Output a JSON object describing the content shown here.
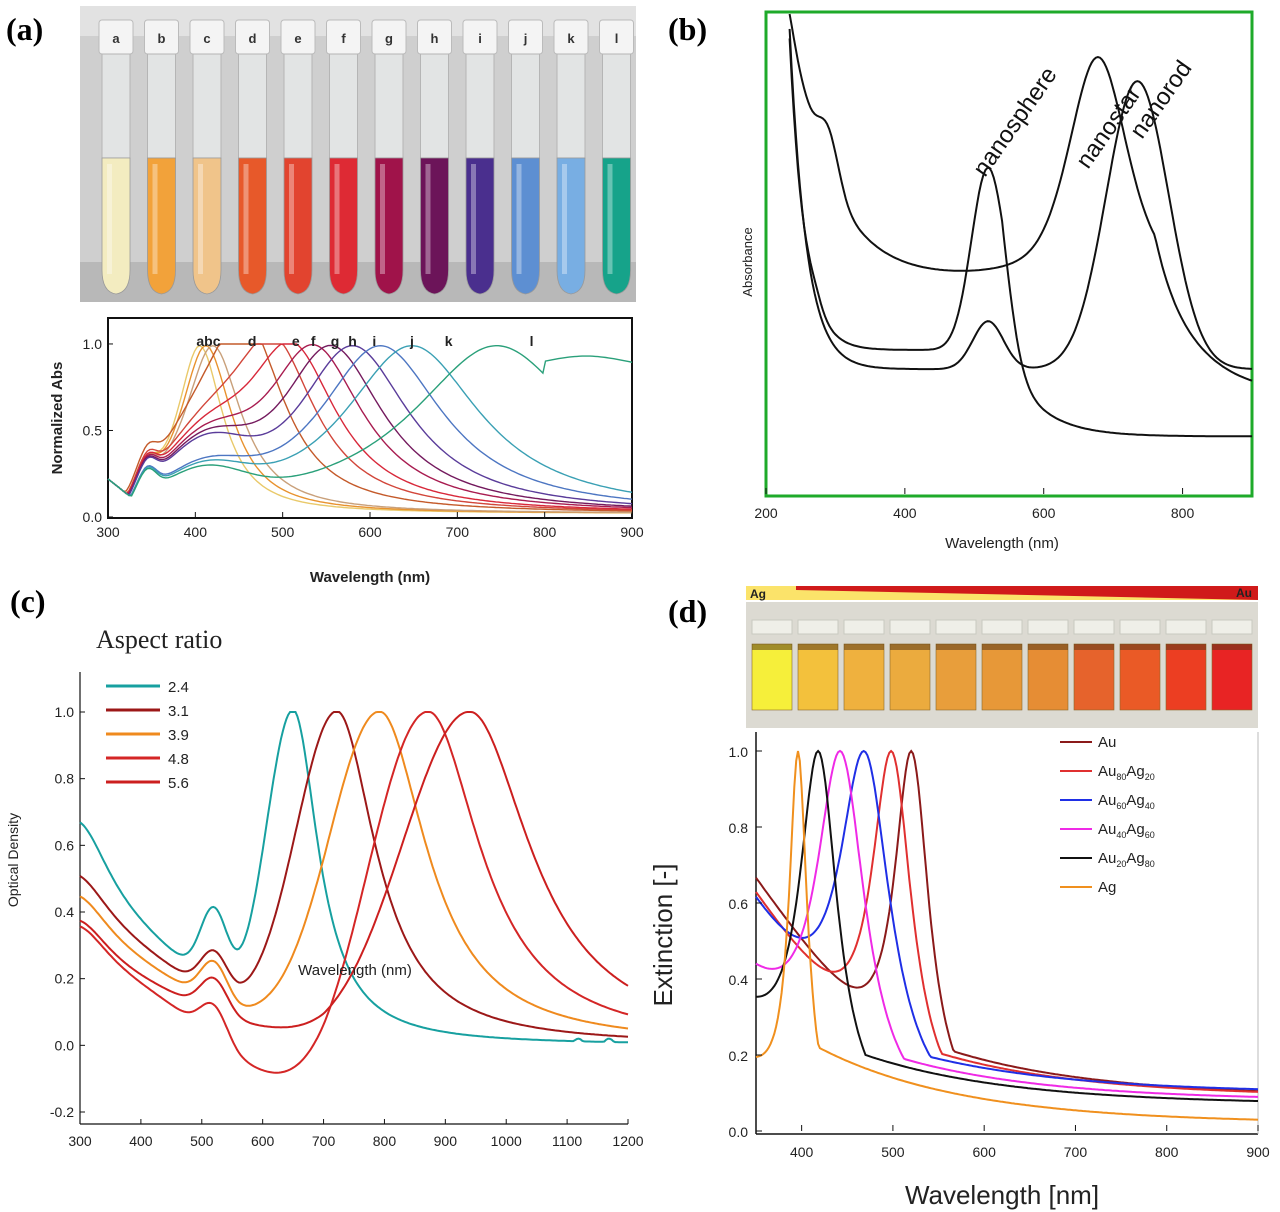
{
  "panel_labels": {
    "a": "(a)",
    "b": "(b)",
    "c": "(c)",
    "d": "(d)"
  },
  "colors": {
    "tubes_a": [
      "#f3ecc0",
      "#f2a23a",
      "#f0c48a",
      "#e7592a",
      "#e2442f",
      "#de2a34",
      "#a0134a",
      "#6c1459",
      "#4a2f8e",
      "#5d8fd2",
      "#78aee3",
      "#16a38a"
    ],
    "curves_a": [
      "#e9c96a",
      "#e8922e",
      "#c9a07a",
      "#c45a2a",
      "#d2463a",
      "#d8283a",
      "#a81c50",
      "#741a5e",
      "#5a3c9a",
      "#4d76c2",
      "#3aa0b4",
      "#2aa07a"
    ],
    "aspect": [
      "#17a0a0",
      "#9c1818",
      "#ef8a1e",
      "#d42626",
      "#cc1f1f"
    ],
    "alloy": [
      "#8b1a1a",
      "#e03030",
      "#1f2fe6",
      "#ef2ae6",
      "#111111",
      "#f0901e"
    ],
    "green_frame": "#1eaa2a"
  },
  "chart_data": [
    {
      "id": "a",
      "type": "line",
      "xlabel": "Wavelength (nm)",
      "ylabel": "Normalized Abs",
      "xlim": [
        300,
        900
      ],
      "ylim": [
        0,
        1.15
      ],
      "xticks": [
        300,
        400,
        500,
        600,
        700,
        800,
        900
      ],
      "yticks": [
        0.0,
        0.5,
        1.0
      ],
      "tube_labels": [
        "a",
        "b",
        "c",
        "d",
        "e",
        "f",
        "g",
        "h",
        "i",
        "j",
        "k",
        "l"
      ],
      "curve_labels": [
        {
          "text": "abc",
          "x": 415
        },
        {
          "text": "d",
          "x": 465
        },
        {
          "text": "e",
          "x": 515
        },
        {
          "text": "f",
          "x": 535
        },
        {
          "text": "g",
          "x": 560
        },
        {
          "text": "h",
          "x": 580
        },
        {
          "text": "i",
          "x": 605
        },
        {
          "text": "j",
          "x": 648
        },
        {
          "text": "k",
          "x": 690
        },
        {
          "text": "l",
          "x": 785
        }
      ],
      "series": [
        {
          "name": "a",
          "peak": 405,
          "width": 32
        },
        {
          "name": "b",
          "peak": 412,
          "width": 36
        },
        {
          "name": "c",
          "peak": 420,
          "width": 40
        },
        {
          "name": "d",
          "peak": 460,
          "width": 55
        },
        {
          "name": "e",
          "peak": 490,
          "width": 60
        },
        {
          "name": "f",
          "peak": 510,
          "width": 64
        },
        {
          "name": "g",
          "peak": 535,
          "width": 70
        },
        {
          "name": "h",
          "peak": 555,
          "width": 74
        },
        {
          "name": "i",
          "peak": 580,
          "width": 80
        },
        {
          "name": "j",
          "peak": 612,
          "width": 88
        },
        {
          "name": "k",
          "peak": 648,
          "width": 96
        },
        {
          "name": "l",
          "peak": 745,
          "width": 120
        }
      ]
    },
    {
      "id": "b",
      "type": "line",
      "xlabel": "Wavelength (nm)",
      "ylabel": "Absorbance",
      "xlim": [
        200,
        900
      ],
      "ylim": [
        0,
        1.0
      ],
      "xticks": [
        200,
        400,
        600,
        800
      ],
      "series": [
        {
          "name": "nanosphere",
          "peak": 520
        },
        {
          "name": "nanostar",
          "peak": 678
        },
        {
          "name": "nanorod",
          "peak": 735
        }
      ]
    },
    {
      "id": "c",
      "type": "line",
      "legend_title": "Aspect ratio",
      "xlabel": "Wavelength (nm)",
      "ylabel": "Optical Density",
      "xlim": [
        300,
        1200
      ],
      "ylim": [
        -0.2,
        1.1
      ],
      "xticks": [
        300,
        400,
        500,
        600,
        700,
        800,
        900,
        1000,
        1100,
        1200
      ],
      "yticks": [
        -0.2,
        0.0,
        0.2,
        0.4,
        0.6,
        0.8,
        1.0
      ],
      "series": [
        {
          "name": "2.4",
          "peak": 650,
          "baseline": 0.0,
          "width": 45
        },
        {
          "name": "3.1",
          "peak": 722,
          "baseline": 0.0,
          "width": 70
        },
        {
          "name": "3.9",
          "peak": 792,
          "baseline": 0.05,
          "width": 85
        },
        {
          "name": "4.8",
          "peak": 872,
          "baseline": -0.15,
          "width": 95
        },
        {
          "name": "5.6",
          "peak": 940,
          "baseline": 0.0,
          "width": 110
        }
      ]
    },
    {
      "id": "d",
      "type": "line",
      "xlabel": "Wavelength [nm]",
      "ylabel": "Extinction [-]",
      "xlim": [
        350,
        900
      ],
      "ylim": [
        0,
        1.05
      ],
      "xticks": [
        400,
        500,
        600,
        700,
        800,
        900
      ],
      "yticks": [
        0.0,
        0.2,
        0.4,
        0.6,
        0.8,
        1.0
      ],
      "strip_labels": {
        "left": "Ag",
        "right": "Au"
      },
      "series": [
        {
          "name": "Au",
          "sub": [],
          "peak": 520
        },
        {
          "name": "Au80Ag20",
          "sub": [
            "Au",
            "80",
            "Ag",
            "20"
          ],
          "peak": 498
        },
        {
          "name": "Au60Ag40",
          "sub": [
            "Au",
            "60",
            "Ag",
            "40"
          ],
          "peak": 468
        },
        {
          "name": "Au40Ag60",
          "sub": [
            "Au",
            "40",
            "Ag",
            "60"
          ],
          "peak": 442
        },
        {
          "name": "Au20Ag80",
          "sub": [
            "Au",
            "20",
            "Ag",
            "80"
          ],
          "peak": 418
        },
        {
          "name": "Ag",
          "sub": [],
          "peak": 396
        }
      ]
    }
  ]
}
